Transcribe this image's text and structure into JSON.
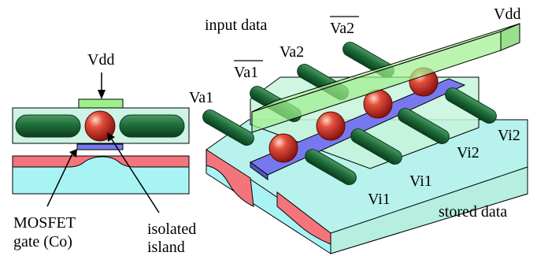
{
  "labels": {
    "input_data": "input data",
    "vdd_left": "Vdd",
    "vdd_right": "Vdd",
    "va1_bar": "Va1",
    "va2": "Va2",
    "va2_bar": "Va2",
    "va1": "Va1",
    "vi2_a": "Vi2",
    "vi2_b": "Vi2",
    "vi1_a": "Vi1",
    "vi1_b": "Vi1",
    "stored_data": "stored data",
    "mosfet_line1": "MOSFET",
    "mosfet_line2": "gate (Co)",
    "island_line1": "isolated",
    "island_line2": "island"
  },
  "colors": {
    "substrate_cyan": "#a8f4f4",
    "substrate_side": "#c4f4e8",
    "pink_region": "#f4747c",
    "mint_layer": "#bff2dc",
    "blue_gate": "#7878ee",
    "green_vdd": "#9ef08c",
    "rod_dark": "#0f5a2a",
    "ball_red": "#c0281e"
  },
  "icons": [
    "dot-sphere-icon",
    "gate-rod-icon"
  ]
}
